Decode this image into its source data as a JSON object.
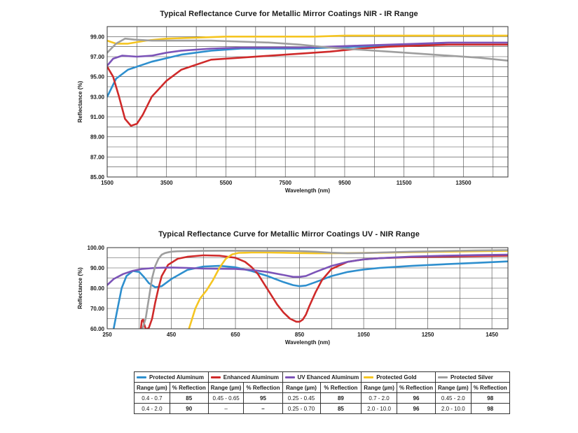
{
  "chart_data": [
    {
      "type": "line",
      "title": "Typical Reflectance Curve for Metallic Mirror Coatings NIR - IR Range",
      "xlabel": "Wavelength (nm)",
      "ylabel": "Reflectance (%)",
      "xlim": [
        1500,
        15000
      ],
      "ylim": [
        85,
        100
      ],
      "xticks": [
        1500,
        3500,
        5500,
        7500,
        9500,
        11500,
        13500
      ],
      "xtick_labels": [
        "1500",
        "3500",
        "5500",
        "7500",
        "9500",
        "11500",
        "13500"
      ],
      "yticks": [
        85,
        87,
        89,
        91,
        93,
        95,
        97,
        99
      ],
      "ytick_labels": [
        "85.00",
        "87.00",
        "89.00",
        "91.00",
        "93.00",
        "95.00",
        "97.00",
        "99.00"
      ],
      "grid": true,
      "series": [
        {
          "name": "Protected Aluminum",
          "color": "#2e8fce",
          "x": [
            1500,
            1800,
            2200,
            3000,
            4000,
            5000,
            6000,
            7000,
            8000,
            9000,
            10000,
            11000,
            12000,
            13000,
            14000,
            15000
          ],
          "y": [
            93.0,
            94.8,
            95.7,
            96.5,
            97.2,
            97.6,
            97.8,
            97.8,
            97.8,
            97.9,
            98.0,
            98.1,
            98.2,
            98.2,
            98.2,
            98.2
          ]
        },
        {
          "name": "Enhanced Aluminum",
          "color": "#cf2a2a",
          "x": [
            1500,
            1700,
            1900,
            2100,
            2300,
            2500,
            2700,
            3000,
            3500,
            4000,
            5000,
            6000,
            7000,
            8000,
            9000,
            10000,
            11000,
            12000,
            13000,
            14000,
            15000
          ],
          "y": [
            96.0,
            95.0,
            93.0,
            90.8,
            90.1,
            90.3,
            91.2,
            93.0,
            94.6,
            95.7,
            96.7,
            96.9,
            97.1,
            97.3,
            97.5,
            97.8,
            98.0,
            98.1,
            98.2,
            98.2,
            98.2
          ]
        },
        {
          "name": "UV Ehanced Aluminum",
          "color": "#7c54b8",
          "x": [
            1500,
            1700,
            2000,
            2500,
            3000,
            3500,
            4000,
            5000,
            6000,
            7000,
            8000,
            9000,
            10000,
            11000,
            12000,
            13000,
            14000,
            15000
          ],
          "y": [
            96.1,
            96.8,
            97.1,
            97.0,
            97.1,
            97.4,
            97.6,
            97.8,
            97.9,
            97.9,
            97.9,
            98.0,
            98.1,
            98.2,
            98.3,
            98.4,
            98.4,
            98.4
          ]
        },
        {
          "name": "Protected Gold",
          "color": "#f5c521",
          "x": [
            1500,
            1800,
            2200,
            2800,
            3500,
            4500,
            5500,
            6500,
            7500,
            8500,
            9500,
            10500,
            11500,
            12500,
            13500,
            14500,
            15000
          ],
          "y": [
            98.6,
            98.3,
            98.3,
            98.6,
            98.8,
            98.9,
            99.0,
            99.0,
            99.0,
            99.0,
            99.1,
            99.1,
            99.1,
            99.1,
            99.1,
            99.1,
            99.1
          ]
        },
        {
          "name": "Protected Silver",
          "color": "#9e9e9e",
          "x": [
            1500,
            1800,
            2100,
            2400,
            3000,
            4000,
            5000,
            6000,
            7000,
            8000,
            9000,
            10000,
            11000,
            12000,
            13000,
            14000,
            15000
          ],
          "y": [
            97.4,
            98.3,
            98.8,
            98.7,
            98.6,
            98.6,
            98.6,
            98.5,
            98.4,
            98.2,
            97.9,
            97.7,
            97.5,
            97.3,
            97.1,
            96.9,
            96.6
          ]
        }
      ]
    },
    {
      "type": "line",
      "title": "Typical Reflectance Curve for Metallic Mirror Coatings UV - NIR Range",
      "xlabel": "Wavelength (nm)",
      "ylabel": "Reflectance (%)",
      "xlim": [
        250,
        1500
      ],
      "ylim": [
        60,
        100
      ],
      "xticks": [
        250,
        450,
        650,
        850,
        1050,
        1250,
        1450
      ],
      "xtick_labels": [
        "250",
        "450",
        "650",
        "850",
        "1050",
        "1250",
        "1450"
      ],
      "yticks": [
        60,
        70,
        80,
        90,
        100
      ],
      "ytick_labels": [
        "60.00",
        "70.00",
        "80.00",
        "90.00",
        "100.00"
      ],
      "grid": true,
      "series": [
        {
          "name": "Protected Aluminum",
          "color": "#2e8fce",
          "x": [
            270,
            280,
            295,
            310,
            330,
            350,
            365,
            380,
            400,
            420,
            450,
            500,
            550,
            600,
            650,
            700,
            750,
            800,
            830,
            850,
            870,
            900,
            950,
            1000,
            1050,
            1100,
            1200,
            1300,
            1400,
            1500
          ],
          "y": [
            60,
            68,
            80,
            86,
            88.5,
            88.0,
            85.5,
            82.5,
            80.5,
            81.0,
            84.5,
            89.0,
            90.7,
            91.0,
            90.3,
            88.5,
            86.0,
            83.0,
            81.5,
            81.0,
            81.3,
            83.0,
            86.0,
            88.0,
            89.2,
            90.0,
            91.0,
            91.8,
            92.5,
            93.2
          ]
        },
        {
          "name": "Enhanced Aluminum",
          "color": "#cf2a2a",
          "x": [
            355,
            358,
            362,
            366,
            370,
            375,
            380,
            390,
            400,
            410,
            420,
            440,
            470,
            500,
            550,
            600,
            650,
            680,
            700,
            720,
            740,
            760,
            780,
            800,
            820,
            840,
            850,
            860,
            870,
            880,
            900,
            920,
            950,
            1000,
            1050,
            1100,
            1200,
            1300,
            1400,
            1500
          ],
          "y": [
            60,
            64.0,
            64.5,
            62.0,
            60,
            60,
            60.5,
            65,
            73,
            80,
            86,
            91.5,
            94.5,
            95.5,
            96.2,
            96.0,
            95.0,
            93.0,
            90.5,
            87.0,
            82.0,
            77.0,
            72.0,
            68.0,
            65.0,
            63.5,
            63.5,
            64.5,
            67.0,
            71.0,
            78.0,
            84.0,
            89.5,
            93.0,
            94.2,
            94.8,
            95.3,
            95.6,
            95.8,
            96.0
          ]
        },
        {
          "name": "UV Ehanced Aluminum",
          "color": "#7c54b8",
          "x": [
            250,
            270,
            300,
            330,
            360,
            400,
            450,
            500,
            550,
            600,
            650,
            700,
            750,
            800,
            830,
            850,
            870,
            900,
            950,
            1000,
            1050,
            1100,
            1200,
            1300,
            1400,
            1500
          ],
          "y": [
            81.5,
            84.5,
            87.0,
            88.6,
            89.5,
            90.0,
            90.2,
            90.0,
            89.7,
            89.6,
            89.5,
            89.0,
            88.0,
            86.5,
            85.6,
            85.6,
            86.0,
            88.0,
            91.0,
            93.0,
            94.2,
            94.8,
            95.6,
            96.0,
            96.3,
            96.5
          ]
        },
        {
          "name": "Protected Gold",
          "color": "#f5c521",
          "x": [
            505,
            515,
            525,
            540,
            560,
            580,
            600,
            620,
            640,
            660,
            680,
            700,
            750,
            800,
            850,
            900,
            950,
            1000,
            1100,
            1200,
            1300,
            1400,
            1500
          ],
          "y": [
            60,
            65,
            70,
            75,
            79,
            84,
            90,
            94.5,
            96.7,
            97.4,
            97.5,
            97.6,
            97.6,
            97.5,
            97.3,
            97.2,
            97.2,
            97.3,
            97.5,
            97.8,
            98.0,
            98.2,
            98.4
          ]
        },
        {
          "name": "Protected Silver",
          "color": "#9e9e9e",
          "x": [
            360,
            370,
            380,
            390,
            400,
            410,
            420,
            430,
            440,
            450,
            470,
            500,
            550,
            600,
            650,
            700,
            750,
            800,
            850,
            900,
            950,
            1000,
            1050,
            1100,
            1200,
            1300,
            1400,
            1500
          ],
          "y": [
            60,
            65,
            75,
            85,
            91,
            94.5,
            96.5,
            97.3,
            97.7,
            98.0,
            98.2,
            98.3,
            98.4,
            98.5,
            98.5,
            98.5,
            98.4,
            98.4,
            98.3,
            98.0,
            97.5,
            97.2,
            97.3,
            97.6,
            98.0,
            98.3,
            98.6,
            98.8
          ]
        }
      ]
    }
  ],
  "legend_table": {
    "coatings": [
      {
        "name": "Protected Aluminum",
        "color": "#2e8fce"
      },
      {
        "name": "Enhanced Aluminum",
        "color": "#cf2a2a"
      },
      {
        "name": "UV Ehanced Aluminum",
        "color": "#7c54b8"
      },
      {
        "name": "Protected Gold",
        "color": "#f5c521"
      },
      {
        "name": "Protected Silver",
        "color": "#9e9e9e"
      }
    ],
    "col_range": "Range (µm)",
    "col_reflection": "% Reflection",
    "rows": [
      [
        "0.4 - 0.7",
        "85",
        "0.45 - 0.65",
        "95",
        "0.25 - 0.45",
        "89",
        "0.7 - 2.0",
        "96",
        "0.45 - 2.0",
        "98"
      ],
      [
        "0.4 - 2.0",
        "90",
        "–",
        "–",
        "0.25 - 0.70",
        "85",
        "2.0 - 10.0",
        "96",
        "2.0 - 10.0",
        "98"
      ]
    ]
  }
}
